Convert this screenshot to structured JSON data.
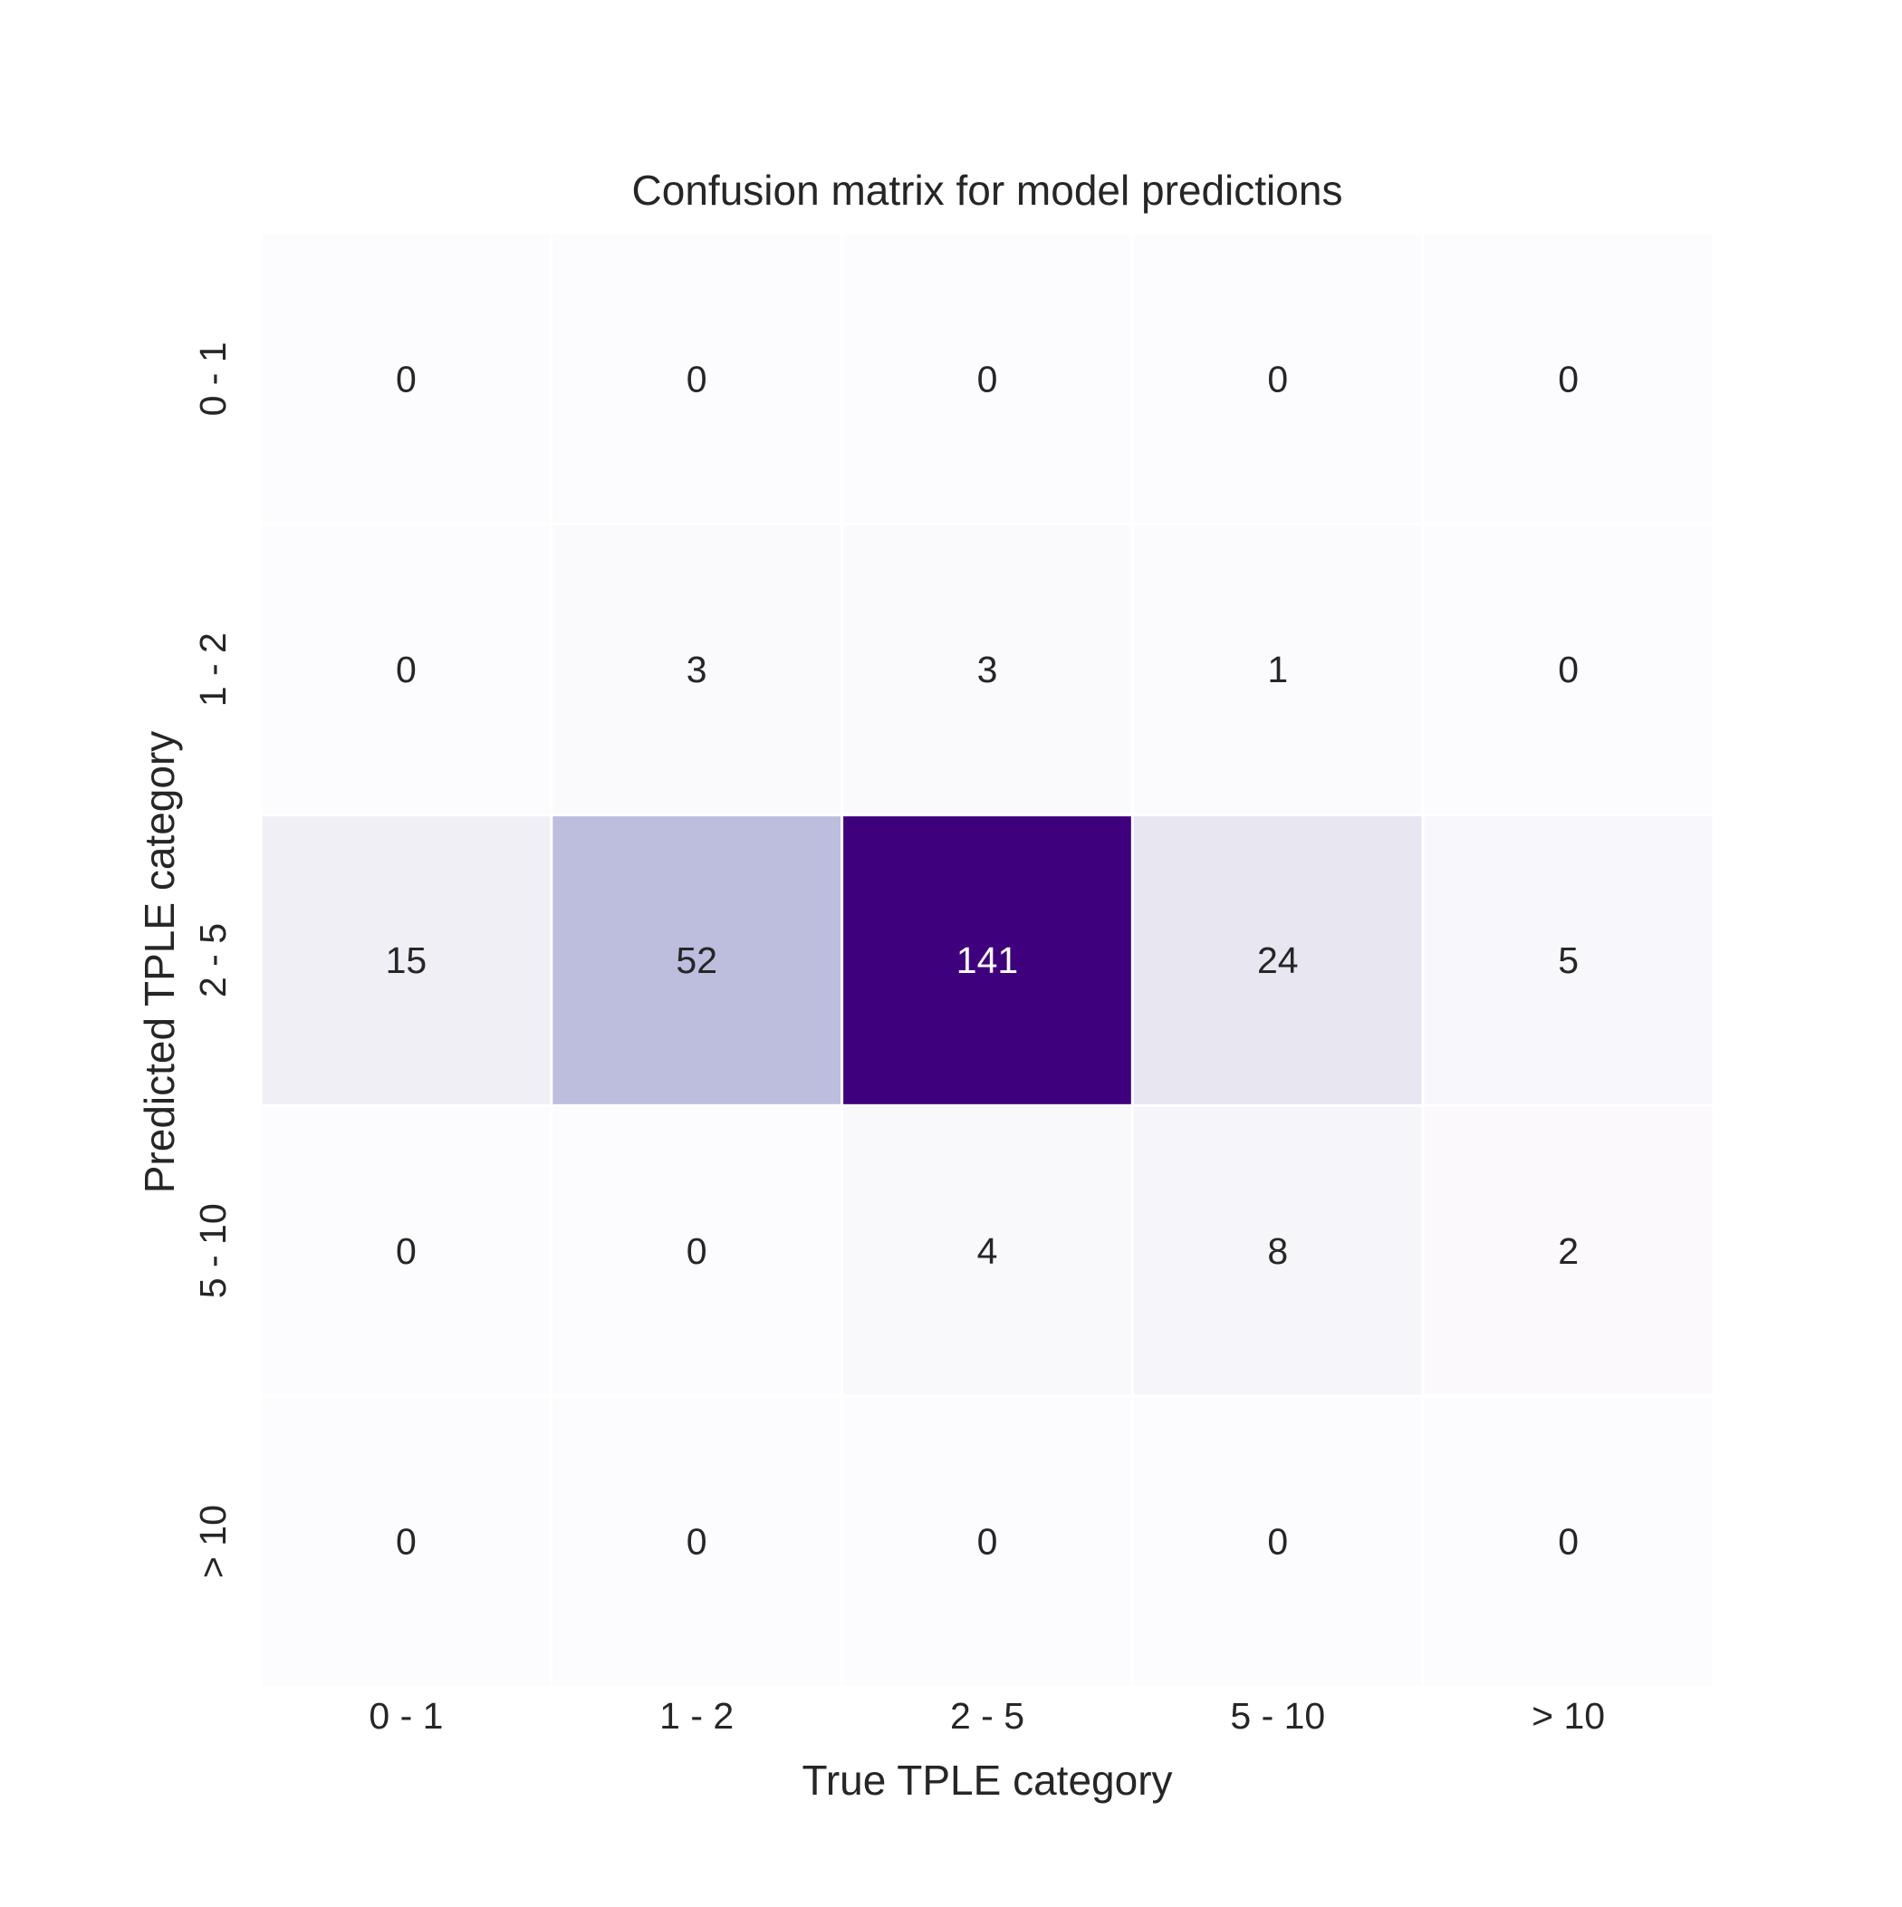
{
  "chart_data": {
    "type": "heatmap",
    "title": "Confusion matrix for model predictions",
    "xlabel": "True TPLE category",
    "ylabel": "Predicted TPLE category",
    "x_categories": [
      "0 - 1",
      "1 - 2",
      "2 - 5",
      "5 - 10",
      "> 10"
    ],
    "y_categories": [
      "0 - 1",
      "1 - 2",
      "2 - 5",
      "5 - 10",
      "> 10"
    ],
    "values": [
      [
        0,
        0,
        0,
        0,
        0
      ],
      [
        0,
        3,
        3,
        1,
        0
      ],
      [
        15,
        52,
        141,
        24,
        5
      ],
      [
        0,
        0,
        4,
        8,
        2
      ],
      [
        0,
        0,
        0,
        0,
        0
      ]
    ],
    "colormap": "Purples",
    "color_low": "#fcfbfd",
    "color_high": "#3f007d",
    "text_color_dark": "#262626",
    "text_color_light": "#ffffff",
    "colorbar": false,
    "grid": false
  }
}
